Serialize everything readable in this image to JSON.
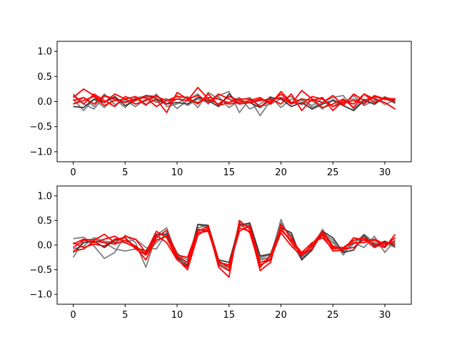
{
  "chart_data": [
    {
      "type": "line",
      "title": "",
      "xlabel": "",
      "ylabel": "",
      "xlim": [
        -1.55,
        32.55
      ],
      "ylim": [
        -1.2,
        1.2
      ],
      "xticks": [
        0,
        5,
        10,
        15,
        20,
        25,
        30
      ],
      "yticks": [
        -1.0,
        -0.5,
        0.0,
        0.5,
        1.0
      ],
      "xtick_labels": [
        "0",
        "5",
        "10",
        "15",
        "20",
        "25",
        "30"
      ],
      "ytick_labels": [
        "−1.0",
        "−0.5",
        "0.0",
        "0.5",
        "1.0"
      ],
      "grid": false,
      "x": [
        0,
        1,
        2,
        3,
        4,
        5,
        6,
        7,
        8,
        9,
        10,
        11,
        12,
        13,
        14,
        15,
        16,
        17,
        18,
        19,
        20,
        21,
        22,
        23,
        24,
        25,
        26,
        27,
        28,
        29,
        30,
        31
      ],
      "series": [
        {
          "color": "#7f7f7f",
          "values": [
            0.15,
            -0.05,
            -0.15,
            0.1,
            0.05,
            -0.12,
            0.08,
            0.1,
            -0.02,
            0.06,
            -0.14,
            0.02,
            0.15,
            -0.05,
            0.12,
            0.2,
            -0.22,
            0.05,
            -0.28,
            0.02,
            0.08,
            -0.05,
            0.06,
            -0.12,
            -0.02,
            0.08,
            0.12,
            -0.15,
            0.05,
            -0.06,
            0.1,
            -0.04
          ]
        },
        {
          "color": "#7f7f7f",
          "values": [
            0.05,
            -0.18,
            0.05,
            -0.12,
            0.08,
            -0.02,
            0.06,
            -0.08,
            0.15,
            -0.1,
            -0.05,
            0.1,
            -0.12,
            0.18,
            0.05,
            -0.02,
            0.08,
            -0.15,
            -0.05,
            0.1,
            -0.12,
            0.05,
            0.02,
            -0.08,
            0.06,
            -0.1,
            0.02,
            0.05,
            -0.02,
            0.08,
            -0.06,
            0.03
          ]
        },
        {
          "color": "#7f7f7f",
          "values": [
            -0.05,
            0.08,
            -0.1,
            0.15,
            -0.06,
            0.02,
            -0.1,
            0.05,
            0.02,
            -0.05,
            0.12,
            -0.08,
            0.05,
            -0.02,
            0.1,
            -0.12,
            0.02,
            0.08,
            -0.1,
            -0.05,
            0.05,
            0.1,
            -0.06,
            0.02,
            -0.15,
            0.04,
            -0.05,
            0.12,
            -0.08,
            0.02,
            0.05,
            -0.02
          ]
        },
        {
          "color": "#3a3a3a",
          "values": [
            -0.1,
            -0.12,
            0.05,
            -0.02,
            0.1,
            -0.08,
            0.02,
            0.12,
            0.06,
            -0.05,
            -0.02,
            -0.05,
            0.08,
            0.02,
            -0.1,
            0.15,
            -0.05,
            -0.02,
            -0.12,
            0.08,
            0.05,
            -0.1,
            -0.02,
            -0.15,
            -0.05,
            0.02,
            -0.08,
            -0.18,
            0.02,
            -0.05,
            0.08,
            -0.02
          ]
        },
        {
          "color": "#ff0000",
          "values": [
            0.08,
            0.25,
            0.12,
            -0.02,
            0.15,
            0.05,
            0.1,
            -0.06,
            0.05,
            -0.22,
            0.18,
            0.05,
            0.12,
            -0.02,
            0.15,
            0.05,
            -0.05,
            -0.02,
            0.02,
            0.05,
            -0.05,
            0.15,
            -0.18,
            0.05,
            -0.02,
            0.12,
            -0.08,
            0.15,
            0.02,
            0.1,
            0.04,
            0.06
          ]
        },
        {
          "color": "#ff0000",
          "values": [
            0.12,
            -0.05,
            0.15,
            0.02,
            -0.1,
            0.1,
            0.02,
            0.12,
            0.1,
            0.02,
            0.05,
            0.02,
            0.28,
            0.05,
            -0.05,
            0.1,
            0.02,
            -0.02,
            0.05,
            -0.02,
            0.15,
            -0.05,
            0.22,
            0.05,
            -0.12,
            -0.05,
            0.05,
            -0.12,
            0.15,
            0.05,
            -0.02,
            -0.15
          ]
        },
        {
          "color": "#ff0000",
          "values": [
            0.02,
            0.08,
            -0.05,
            0.12,
            0.05,
            -0.02,
            0.05,
            0.08,
            -0.1,
            0.02,
            0.1,
            0.08,
            -0.05,
            0.15,
            -0.08,
            -0.02,
            0.05,
            0.05,
            -0.1,
            0.02,
            0.08,
            -0.05,
            0.05,
            0.02,
            0.08,
            -0.18,
            0.02,
            -0.05,
            0.15,
            -0.02,
            0.08,
            0.04
          ]
        },
        {
          "color": "#ff0000",
          "values": [
            -0.05,
            0.02,
            0.1,
            -0.08,
            0.02,
            0.05,
            -0.05,
            0.02,
            0.12,
            -0.05,
            0.05,
            0.02,
            -0.02,
            0.08,
            0.05,
            -0.05,
            -0.02,
            0.02,
            0.08,
            -0.05,
            0.2,
            -0.02,
            -0.05,
            0.1,
            0.05,
            -0.1,
            -0.02,
            0.02,
            -0.05,
            0.12,
            0.05,
            0.02
          ]
        }
      ]
    },
    {
      "type": "line",
      "title": "",
      "xlabel": "",
      "ylabel": "",
      "xlim": [
        -1.55,
        32.55
      ],
      "ylim": [
        -1.2,
        1.2
      ],
      "xticks": [
        0,
        5,
        10,
        15,
        20,
        25,
        30
      ],
      "yticks": [
        -1.0,
        -0.5,
        0.0,
        0.5,
        1.0
      ],
      "xtick_labels": [
        "0",
        "5",
        "10",
        "15",
        "20",
        "25",
        "30"
      ],
      "ytick_labels": [
        "−1.0",
        "−0.5",
        "0.0",
        "0.5",
        "1.0"
      ],
      "grid": false,
      "x": [
        0,
        1,
        2,
        3,
        4,
        5,
        6,
        7,
        8,
        9,
        10,
        11,
        12,
        13,
        14,
        15,
        16,
        17,
        18,
        19,
        20,
        21,
        22,
        23,
        24,
        25,
        26,
        27,
        28,
        29,
        30,
        31
      ],
      "series": [
        {
          "color": "#7f7f7f",
          "values": [
            0.13,
            0.16,
            -0.02,
            -0.27,
            -0.15,
            0.2,
            0.05,
            -0.45,
            0.2,
            0.35,
            -0.25,
            -0.35,
            0.42,
            0.35,
            -0.38,
            -0.45,
            0.48,
            0.35,
            -0.3,
            -0.25,
            0.52,
            0.05,
            -0.3,
            -0.05,
            0.32,
            -0.02,
            -0.12,
            0.05,
            -0.05,
            0.18,
            -0.15,
            0.1
          ]
        },
        {
          "color": "#7f7f7f",
          "values": [
            -0.25,
            0.1,
            0.12,
            0.05,
            -0.08,
            -0.12,
            -0.08,
            -0.2,
            0.05,
            0.22,
            -0.15,
            -0.4,
            0.3,
            0.28,
            -0.35,
            -0.5,
            0.42,
            0.38,
            -0.25,
            -0.2,
            0.45,
            0.15,
            -0.25,
            -0.05,
            0.22,
            0.05,
            -0.15,
            0.02,
            0.22,
            0.05,
            -0.02,
            0.05
          ]
        },
        {
          "color": "#7f7f7f",
          "values": [
            -0.08,
            -0.02,
            0.15,
            0.08,
            0.05,
            0.05,
            0.12,
            -0.05,
            -0.08,
            0.25,
            -0.18,
            -0.3,
            0.35,
            0.4,
            -0.42,
            -0.4,
            0.38,
            0.42,
            -0.28,
            -0.25,
            0.38,
            0.2,
            -0.28,
            0.02,
            0.25,
            0.1,
            -0.2,
            0.1,
            0.1,
            0.02,
            0.05,
            -0.05
          ]
        },
        {
          "color": "#3a3a3a",
          "values": [
            -0.15,
            0.05,
            0.08,
            -0.05,
            0.1,
            0.15,
            -0.05,
            -0.12,
            0.22,
            0.22,
            -0.25,
            -0.42,
            0.42,
            0.4,
            -0.3,
            -0.35,
            0.4,
            0.45,
            -0.22,
            -0.18,
            0.35,
            0.25,
            -0.3,
            -0.1,
            0.28,
            0.15,
            -0.15,
            -0.1,
            0.2,
            -0.02,
            0.08,
            -0.02
          ]
        },
        {
          "color": "#ff0000",
          "values": [
            0.02,
            0.12,
            0.1,
            0.22,
            0.05,
            0.18,
            0.12,
            -0.15,
            0.28,
            0.15,
            -0.28,
            -0.5,
            0.2,
            0.35,
            -0.45,
            -0.65,
            0.5,
            0.32,
            -0.52,
            -0.35,
            0.42,
            0.15,
            -0.2,
            -0.08,
            0.25,
            -0.05,
            -0.05,
            0.1,
            0.15,
            0.02,
            -0.05,
            0.22
          ]
        },
        {
          "color": "#ff0000",
          "values": [
            -0.05,
            0.1,
            0.05,
            0.12,
            0.18,
            0.05,
            -0.05,
            -0.3,
            0.15,
            0.3,
            -0.2,
            -0.25,
            0.32,
            0.3,
            -0.4,
            -0.52,
            0.45,
            0.25,
            -0.45,
            -0.2,
            0.35,
            0.05,
            -0.18,
            -0.02,
            0.2,
            -0.12,
            -0.1,
            0.15,
            0.1,
            0.1,
            -0.02,
            0.15
          ]
        },
        {
          "color": "#ff0000",
          "values": [
            0.05,
            -0.05,
            0.02,
            -0.02,
            0.12,
            0.15,
            -0.08,
            -0.2,
            0.2,
            0.05,
            -0.3,
            -0.45,
            0.25,
            0.28,
            -0.35,
            -0.4,
            0.35,
            0.28,
            -0.4,
            -0.3,
            0.3,
            0.1,
            -0.15,
            0.05,
            0.15,
            -0.08,
            -0.05,
            0.05,
            0.05,
            0.12,
            0.02,
            0.08
          ]
        },
        {
          "color": "#ff0000",
          "values": [
            -0.12,
            -0.08,
            0.08,
            0.05,
            0.02,
            0.1,
            -0.02,
            -0.18,
            0.1,
            0.18,
            -0.22,
            -0.35,
            0.28,
            0.38,
            -0.32,
            -0.45,
            0.28,
            0.4,
            -0.35,
            -0.28,
            0.25,
            -0.02,
            -0.22,
            0.02,
            0.28,
            -0.02,
            -0.08,
            -0.05,
            0.12,
            -0.05,
            0.05,
            0.02
          ]
        }
      ]
    }
  ]
}
